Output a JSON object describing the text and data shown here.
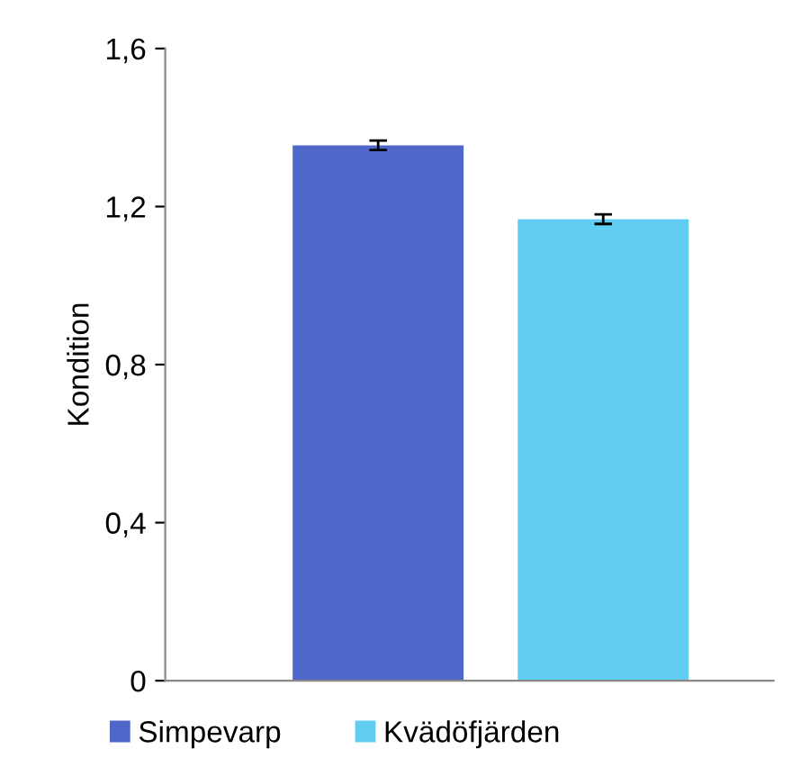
{
  "chart_data": {
    "type": "bar",
    "ylabel": "Kondition",
    "categories": [
      null
    ],
    "series": [
      {
        "name": "Simpevarp",
        "color": "#4f67c8",
        "values": [
          1.355
        ],
        "errors": [
          0.012
        ]
      },
      {
        "name": "Kvädöfjärden",
        "color": "#61cdf2",
        "values": [
          1.168
        ],
        "errors": [
          0.012
        ]
      }
    ],
    "ylim": [
      0,
      1.6
    ],
    "yticks": [
      0,
      {
        "value": 0.4,
        "label": "0,4"
      },
      {
        "value": 0.8,
        "label": "0,8"
      },
      {
        "value": 1.2,
        "label": "1,2"
      },
      {
        "value": 1.6,
        "label": "1,6"
      }
    ],
    "grid": false,
    "legend": "bottom"
  }
}
